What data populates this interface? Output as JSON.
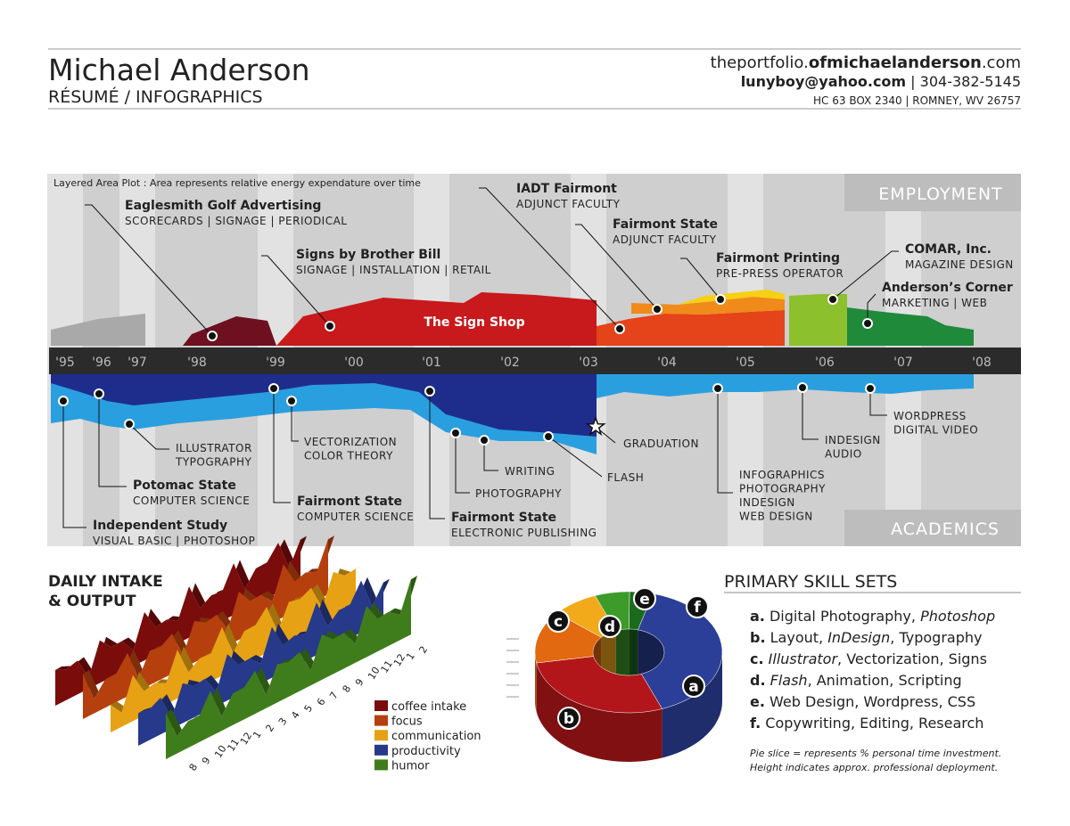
{
  "header": {
    "name": "Michael Anderson",
    "subtitle": "RÉSUMÉ / INFOGRAPHICS",
    "website": [
      {
        "text": "theportfolio."
      },
      {
        "text": "ofmichaelanderson",
        "bold": true
      },
      {
        "text": ".com"
      }
    ],
    "contact": [
      {
        "text": "lunyboy@yahoo.com",
        "bold": true
      },
      {
        "text": " | 304-382-5145"
      }
    ],
    "address": "HC 63 BOX 2340 | ROMNEY, WV 26757"
  },
  "timeline": {
    "note": "Layered Area Plot : Area represents relative energy expendature over time",
    "employment_label": "EMPLOYMENT",
    "academics_label": "ACADEMICS",
    "area_label": "The Sign Shop",
    "years": [
      "'95",
      "'96",
      "'97",
      "'98",
      "'99",
      "'00",
      "'01",
      "'02",
      "'03",
      "'04",
      "'05",
      "'06",
      "'07",
      "'08"
    ],
    "employment": [
      {
        "title": "Eaglesmith Golf Advertising",
        "detail": "SCORECARDS | SIGNAGE | PERIODICAL"
      },
      {
        "title": "Signs by Brother Bill",
        "detail": "SIGNAGE | INSTALLATION | RETAIL"
      },
      {
        "title": "IADT Fairmont",
        "detail": "ADJUNCT FACULTY"
      },
      {
        "title": "Fairmont State",
        "detail": "ADJUNCT FACULTY"
      },
      {
        "title": "Fairmont Printing",
        "detail": "PRE-PRESS OPERATOR"
      },
      {
        "title": "COMAR, Inc.",
        "detail": "MAGAZINE DESIGN"
      },
      {
        "title": "Anderson’s Corner",
        "detail": "MARKETING | WEB"
      }
    ],
    "academics": [
      {
        "title": "Independent Study",
        "lines": [
          "VISUAL BASIC | PHOTOSHOP"
        ]
      },
      {
        "title": "Potomac State",
        "lines": [
          "COMPUTER SCIENCE"
        ]
      },
      {
        "lines": [
          "ILLUSTRATOR",
          "TYPOGRAPHY"
        ]
      },
      {
        "title": "Fairmont State",
        "lines": [
          "COMPUTER SCIENCE"
        ]
      },
      {
        "lines": [
          "VECTORIZATION",
          "COLOR THEORY"
        ]
      },
      {
        "title": "Fairmont State",
        "lines": [
          "ELECTRONIC PUBLISHING"
        ]
      },
      {
        "lines": [
          "PHOTOGRAPHY"
        ]
      },
      {
        "lines": [
          "WRITING"
        ]
      },
      {
        "lines": [
          "FLASH"
        ]
      },
      {
        "lines": [
          "GRADUATION"
        ]
      },
      {
        "lines": [
          "INFOGRAPHICS",
          "PHOTOGRAPHY",
          "INDESIGN",
          "WEB DESIGN"
        ]
      },
      {
        "lines": [
          "INDESIGN",
          "AUDIO"
        ]
      },
      {
        "lines": [
          "WORDPRESS",
          "DIGITAL VIDEO"
        ]
      }
    ]
  },
  "daily": {
    "title": [
      "DAILY INTAKE",
      "& OUTPUT"
    ],
    "hours": [
      "8",
      "9",
      "10",
      "11",
      "12",
      "1",
      "2",
      "3",
      "4",
      "5",
      "6",
      "7",
      "8",
      "9",
      "10",
      "11",
      "12",
      "1",
      "2"
    ],
    "legend": [
      {
        "name": "coffee intake",
        "color": "#7a0c0c"
      },
      {
        "name": "focus",
        "color": "#b5400e"
      },
      {
        "name": "communication",
        "color": "#e6a214"
      },
      {
        "name": "productivity",
        "color": "#26398a"
      },
      {
        "name": "humor",
        "color": "#3f7d1c"
      }
    ]
  },
  "skills": {
    "title": "PRIMARY SKILL SETS",
    "items": [
      {
        "marker": "a.",
        "pie_label": "a",
        "share": 40,
        "color": "#2b3f98",
        "segments": [
          {
            "text": "Digital Photography, "
          },
          {
            "text": "Photoshop",
            "italic": true
          }
        ]
      },
      {
        "marker": "b.",
        "pie_label": "b",
        "share": 28,
        "color": "#b3161a",
        "segments": [
          {
            "text": "Layout, "
          },
          {
            "text": "InDesign",
            "italic": true
          },
          {
            "text": ", Typography"
          }
        ]
      },
      {
        "marker": "c.",
        "pie_label": "c",
        "share": 14,
        "color": "#e2690f",
        "segments": [
          {
            "text": "Illustrator",
            "italic": true
          },
          {
            "text": ", Vectorization, Signs"
          }
        ]
      },
      {
        "marker": "d.",
        "pie_label": "d",
        "share": 8,
        "color": "#f2a91a",
        "segments": [
          {
            "text": "Flash",
            "italic": true
          },
          {
            "text": ", Animation, Scripting"
          }
        ]
      },
      {
        "marker": "e.",
        "pie_label": "e",
        "share": 6,
        "color": "#3d9b2a",
        "segments": [
          {
            "text": "Web Design, Wordpress, CSS"
          }
        ]
      },
      {
        "marker": "f.",
        "pie_label": "f",
        "share": 4,
        "color": "#1b6b1c",
        "segments": [
          {
            "text": "Copywriting, Editing, Research"
          }
        ]
      }
    ],
    "footnote": [
      "Pie slice = represents % personal time investment.",
      "Height indicates approx. professional deployment."
    ]
  }
}
